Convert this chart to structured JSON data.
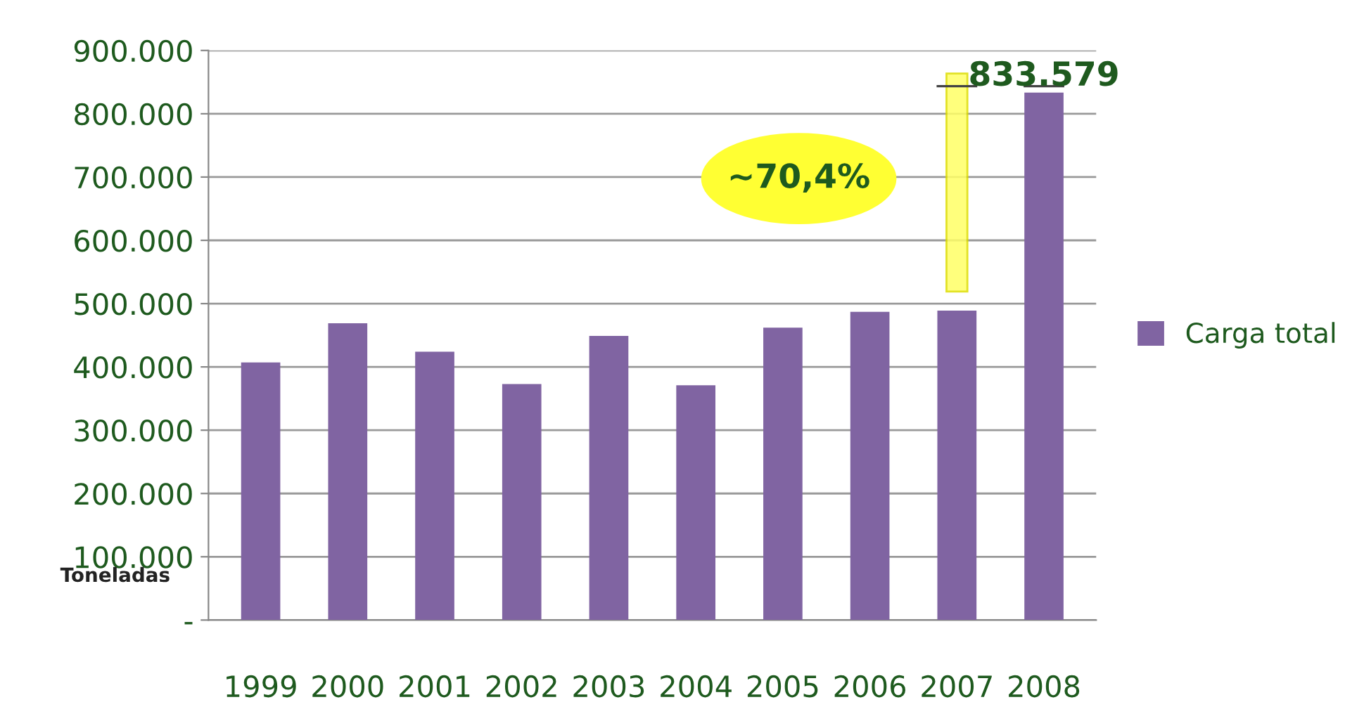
{
  "chart_data": {
    "type": "bar",
    "ylabel": "Toneladas",
    "categories": [
      "1999",
      "2000",
      "2001",
      "2002",
      "2003",
      "2004",
      "2005",
      "2006",
      "2007",
      "2008"
    ],
    "series": [
      {
        "name": "Carga total",
        "color": "#8064a2",
        "values": [
          407000,
          469000,
          424000,
          373000,
          449000,
          371000,
          462000,
          487000,
          489000,
          833579
        ],
        "value_labels": [
          null,
          null,
          null,
          null,
          null,
          null,
          null,
          null,
          null,
          "833.579"
        ]
      }
    ],
    "ylim": [
      0,
      900000
    ],
    "yticks": [
      {
        "value": 0,
        "label": "-"
      },
      {
        "value": 100000,
        "label": "100.000"
      },
      {
        "value": 200000,
        "label": "200.000"
      },
      {
        "value": 300000,
        "label": "300.000"
      },
      {
        "value": 400000,
        "label": "400.000"
      },
      {
        "value": 500000,
        "label": "500.000"
      },
      {
        "value": 600000,
        "label": "600.000"
      },
      {
        "value": 700000,
        "label": "700.000"
      },
      {
        "value": 800000,
        "label": "800.000"
      },
      {
        "value": 900000,
        "label": "900.000"
      }
    ],
    "grid": "y",
    "legend": "right",
    "annotations": [
      "~70,4%"
    ]
  }
}
